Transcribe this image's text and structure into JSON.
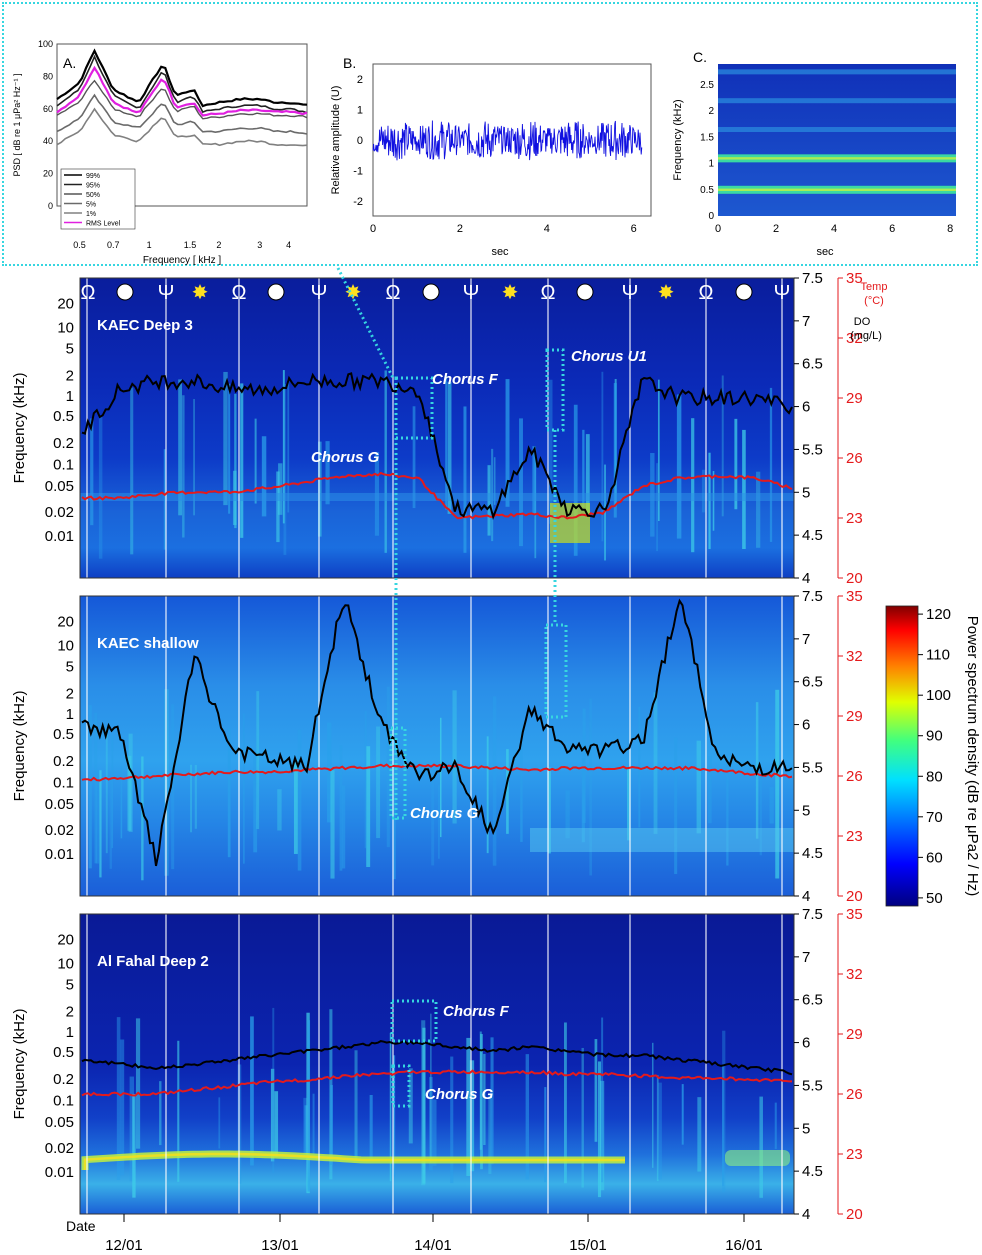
{
  "insets": {
    "a": {
      "label": "A.",
      "ylabel": "PSD [ dB re 1 μPa² Hz⁻¹ ]",
      "xlabel": "Frequency [ kHz ]",
      "yticks": [
        "100",
        "80",
        "60",
        "40",
        "20",
        "0"
      ],
      "xticks": [
        "0.5",
        "0.7",
        "1",
        "1.5",
        "2",
        "3",
        "4"
      ],
      "legend": [
        "99%",
        "95%",
        "50%",
        "5%",
        "1%",
        "RMS Level"
      ]
    },
    "b": {
      "label": "B.",
      "ylabel": "Relative amplitude (U)",
      "xlabel": "sec",
      "yticks": [
        "2",
        "1",
        "0",
        "-1",
        "-2"
      ],
      "xticks": [
        "0",
        "2",
        "4",
        "6"
      ]
    },
    "c": {
      "label": "C.",
      "ylabel": "Frequency (kHz)",
      "xlabel": "sec",
      "yticks": [
        "2.5",
        "2",
        "1.5",
        "1",
        "0.5",
        "0"
      ],
      "xticks": [
        "0",
        "2",
        "4",
        "6",
        "8"
      ]
    }
  },
  "panels": [
    {
      "title": "KAEC Deep 3"
    },
    {
      "title": "KAEC shallow"
    },
    {
      "title": "Al Fahal Deep 2"
    }
  ],
  "axes": {
    "freq_label": "Frequency (kHz)",
    "freq_ticks": [
      "20",
      "10",
      "5",
      "2",
      "1",
      "0.5",
      "0.2",
      "0.1",
      "0.05",
      "0.02",
      "0.01"
    ],
    "do_ticks": [
      "7.5",
      "7",
      "6.5",
      "6",
      "5.5",
      "5",
      "4.5",
      "4"
    ],
    "temp_ticks": [
      "35",
      "32",
      "29",
      "26",
      "23",
      "20"
    ],
    "temp_label_1": "Temp",
    "temp_label_2": "(°C)",
    "do_label_1": "DO",
    "do_label_2": "(mg/L)",
    "date_label": "Date",
    "date_ticks": [
      "12/01",
      "13/01",
      "14/01",
      "15/01",
      "16/01"
    ]
  },
  "annotations": {
    "chorus_f": "Chorus F",
    "chorus_g": "Chorus G",
    "chorus_u1": "Chorus U1"
  },
  "colorbar": {
    "label": "Power spectrum density (dB re μPa2 / Hz)",
    "ticks": [
      "120",
      "110",
      "100",
      "90",
      "80",
      "70",
      "60",
      "50"
    ]
  },
  "colors": {
    "do_line": "#000000",
    "temp_line": "#e41a1c",
    "annotation_box": "#36d6e0",
    "spectrogram_low": "#00008b",
    "spectrogram_high": "#800000",
    "rms_line": "#e020e0"
  },
  "chart_data": [
    {
      "type": "line",
      "title": "A.",
      "xlabel": "Frequency [ kHz ]",
      "ylabel": "PSD [ dB re 1 μPa² Hz⁻¹ ]",
      "ylim": [
        0,
        100
      ],
      "xlim": [
        0.4,
        4.8
      ],
      "xscale": "log",
      "x": [
        0.4,
        0.5,
        0.58,
        0.7,
        0.9,
        1.15,
        1.3,
        1.55,
        1.7,
        2.0,
        2.5,
        3.0,
        3.5,
        4.0,
        4.8
      ],
      "series": [
        {
          "name": "99%",
          "values": [
            66,
            76,
            96,
            72,
            64,
            88,
            68,
            72,
            62,
            64,
            66,
            66,
            64,
            64,
            62
          ]
        },
        {
          "name": "95%",
          "values": [
            62,
            72,
            92,
            68,
            60,
            84,
            64,
            68,
            58,
            60,
            62,
            62,
            60,
            60,
            58
          ]
        },
        {
          "name": "RMS Level",
          "values": [
            58,
            68,
            86,
            64,
            57,
            80,
            61,
            64,
            56,
            57,
            59,
            59,
            58,
            58,
            57
          ]
        },
        {
          "name": "50%",
          "values": [
            56,
            64,
            78,
            60,
            55,
            74,
            58,
            62,
            54,
            55,
            57,
            57,
            56,
            56,
            55
          ]
        },
        {
          "name": "5%",
          "values": [
            46,
            54,
            68,
            52,
            48,
            64,
            50,
            52,
            46,
            46,
            48,
            48,
            46,
            46,
            45
          ]
        },
        {
          "name": "1%",
          "values": [
            38,
            46,
            60,
            44,
            40,
            56,
            42,
            44,
            38,
            38,
            40,
            40,
            38,
            38,
            37
          ]
        }
      ]
    },
    {
      "type": "line",
      "title": "B.",
      "xlabel": "sec",
      "ylabel": "Relative amplitude (U)",
      "xlim": [
        0,
        6.4
      ],
      "ylim": [
        -2.5,
        2.5
      ],
      "description_values": {
        "amplitude_envelope": [
          -0.7,
          0.7
        ]
      }
    },
    {
      "type": "heatmap",
      "title": "C.",
      "xlabel": "sec",
      "ylabel": "Frequency (kHz)",
      "xlim": [
        0,
        8.2
      ],
      "ylim": [
        0,
        2.9
      ],
      "bands_khz": [
        0.5,
        1.1,
        1.65,
        2.2,
        2.75
      ]
    },
    {
      "type": "heatmap",
      "title": "KAEC Deep 3",
      "ylabel": "Frequency (kHz)",
      "x_dates": [
        "12/01",
        "13/01",
        "14/01",
        "15/01",
        "16/01"
      ],
      "do_mg_l": [
        5.7,
        6.2,
        6.3,
        6.3,
        6.2,
        6.2,
        6.3,
        6.3,
        6.3,
        6.2,
        4.8,
        4.8,
        5.5,
        4.8,
        4.8,
        6.3,
        6.1,
        6.1,
        6.1,
        6.0
      ],
      "temp_c": [
        24,
        24,
        24.2,
        24.3,
        24.3,
        24.5,
        24.8,
        25.1,
        25.2,
        25,
        23,
        23.1,
        23.2,
        23,
        23.3,
        24.6,
        25,
        25.1,
        25,
        24.5
      ]
    },
    {
      "type": "heatmap",
      "title": "KAEC shallow",
      "ylabel": "Frequency (kHz)",
      "do_mg_l": [
        6.0,
        5.9,
        4.4,
        6.8,
        5.7,
        5.6,
        5.5,
        7.5,
        6.0,
        5.4,
        5.5,
        4.7,
        6.2,
        5.7,
        5.7,
        5.8,
        7.5,
        5.6,
        5.5,
        5.5
      ],
      "temp_c": [
        25.8,
        25.9,
        26,
        26.1,
        26.2,
        26.2,
        26.3,
        26.4,
        26.5,
        26.5,
        26.5,
        26.4,
        26.3,
        26.4,
        26.4,
        26.4,
        26.4,
        26.3,
        26.1,
        26
      ]
    },
    {
      "type": "heatmap",
      "title": "Al Fahal Deep 2",
      "ylabel": "Frequency (kHz)",
      "do_mg_l": [
        5.8,
        5.75,
        5.7,
        5.75,
        5.8,
        5.85,
        5.9,
        5.95,
        6.0,
        6.0,
        5.95,
        5.9,
        5.95,
        5.9,
        5.85,
        5.85,
        5.8,
        5.75,
        5.7,
        5.65
      ],
      "temp_c": [
        26,
        26,
        26,
        26.2,
        26.4,
        26.6,
        26.7,
        26.9,
        27.0,
        27.1,
        27.1,
        27.1,
        27.1,
        27.0,
        27.0,
        26.9,
        26.8,
        26.8,
        26.7,
        26.7
      ]
    }
  ]
}
